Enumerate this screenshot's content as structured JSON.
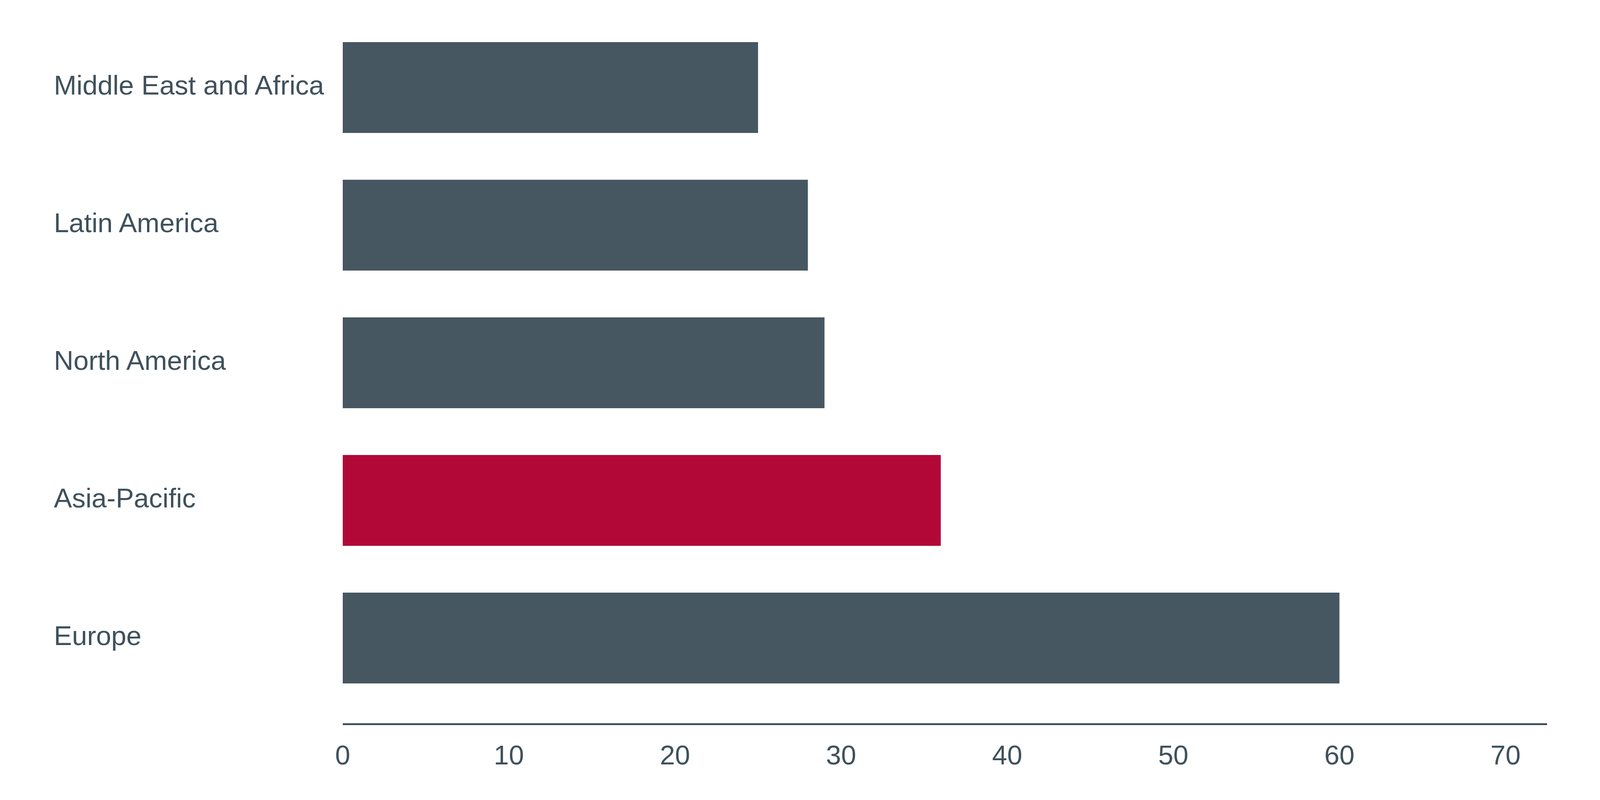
{
  "chart_data": {
    "type": "bar",
    "orientation": "horizontal",
    "categories": [
      "Middle East and Africa",
      "Latin America",
      "North America",
      "Asia-Pacific",
      "Europe"
    ],
    "values": [
      25,
      28,
      29,
      36,
      60
    ],
    "colors": [
      "#475761",
      "#475761",
      "#475761",
      "#b20838",
      "#475761"
    ],
    "xlim": [
      0,
      72.5
    ],
    "xticks": [
      0,
      10,
      20,
      30,
      40,
      50,
      60,
      70
    ],
    "grid": false
  }
}
